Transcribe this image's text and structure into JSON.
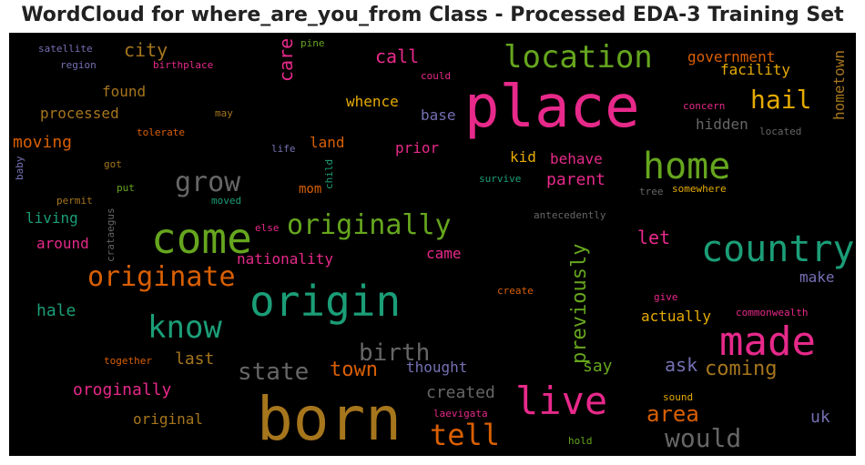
{
  "title": "WordCloud for where_are_you_from Class - Processed EDA-3 Training Set",
  "palette": {
    "green": "#66a61e",
    "pink": "#e7298a",
    "orange": "#d95f02",
    "gold": "#e6ab02",
    "teal": "#1b9e77",
    "purple": "#7570b3",
    "brown": "#a6761d",
    "gray": "#666666"
  },
  "words": {
    "place": "place",
    "born": "born",
    "origin": "origin",
    "come": "come",
    "country": "country",
    "made": "made",
    "home": "home",
    "live": "live",
    "location": "location",
    "originally": "originally",
    "originate": "originate",
    "know": "know",
    "grow": "grow",
    "tell": "tell",
    "would": "would",
    "state": "state",
    "town": "town",
    "birth": "birth",
    "hail": "hail",
    "area": "area",
    "coming": "coming",
    "previously": "previously",
    "city": "city",
    "call": "call",
    "care": "care",
    "government": "government",
    "facility": "facility",
    "hometown": "hometown",
    "whence": "whence",
    "found": "found",
    "processed": "processed",
    "moving": "moving",
    "land": "land",
    "prior": "prior",
    "base": "base",
    "kid": "kid",
    "behave": "behave",
    "parent": "parent",
    "hidden": "hidden",
    "let": "let",
    "mom": "mom",
    "living": "living",
    "around": "around",
    "nationality": "nationality",
    "came": "came",
    "make": "make",
    "hale": "hale",
    "actually": "actually",
    "last": "last",
    "say": "say",
    "ask": "ask",
    "thought": "thought",
    "created": "created",
    "oroginally": "oroginally",
    "original": "original",
    "uk": "uk",
    "satellite": "satellite",
    "region": "region",
    "birthplace": "birthplace",
    "pine": "pine",
    "could": "could",
    "may": "may",
    "tolerate": "tolerate",
    "life": "life",
    "got": "got",
    "baby": "baby",
    "child": "child",
    "put": "put",
    "moved": "moved",
    "permit": "permit",
    "crataegus": "crataegus",
    "else": "else",
    "survive": "survive",
    "tree": "tree",
    "somewhere": "somewhere",
    "antecedently": "antecedently",
    "concern": "concern",
    "located": "located",
    "create": "create",
    "give": "give",
    "commonwealth": "commonwealth",
    "together": "together",
    "sound": "sound",
    "laevigata": "laevigata",
    "hold": "hold"
  }
}
